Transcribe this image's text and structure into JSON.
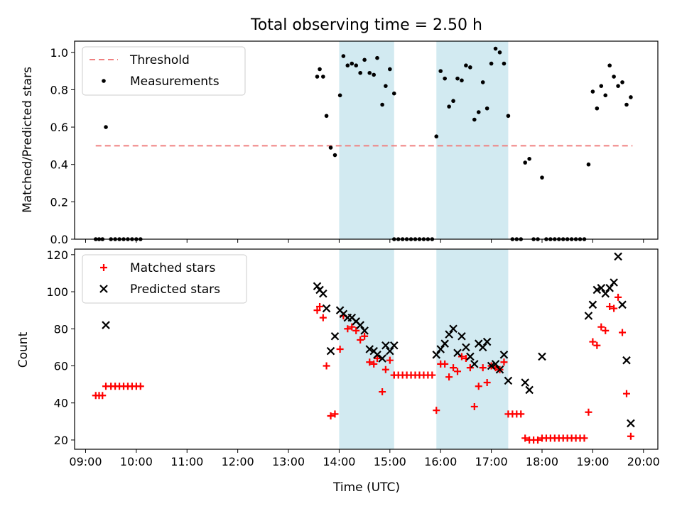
{
  "title": "Total observing time = 2.50 h",
  "x_ticks": [
    {
      "t": 9,
      "label": "09:00"
    },
    {
      "t": 10,
      "label": "10:00"
    },
    {
      "t": 11,
      "label": "11:00"
    },
    {
      "t": 12,
      "label": "12:00"
    },
    {
      "t": 13,
      "label": "13:00"
    },
    {
      "t": 14,
      "label": "14:00"
    },
    {
      "t": 15,
      "label": "15:00"
    },
    {
      "t": 16,
      "label": "16:00"
    },
    {
      "t": 17,
      "label": "17:00"
    },
    {
      "t": 18,
      "label": "18:00"
    },
    {
      "t": 19,
      "label": "19:00"
    },
    {
      "t": 20,
      "label": "20:00"
    }
  ],
  "chart_data": [
    {
      "type": "scatter",
      "ylabel": "Matched/Predicted stars",
      "xlabel": "",
      "xlim": [
        "08:47",
        "20:17"
      ],
      "ylim": [
        0,
        1.06
      ],
      "y_ticks": [
        "0.0",
        "0.2",
        "0.4",
        "0.6",
        "0.8",
        "1.0"
      ],
      "legend": {
        "position": "top-left",
        "entries": [
          "Threshold",
          "Measurements"
        ]
      },
      "colors": {
        "threshold": "#f08080",
        "measurements": "#000000",
        "span": "#add8e6"
      },
      "shaded_spans": [
        [
          "14:00",
          "15:05"
        ],
        [
          "15:55",
          "17:20"
        ]
      ],
      "threshold": {
        "name": "Threshold",
        "y": 0.5,
        "x_range": [
          "09:12",
          "19:47"
        ]
      },
      "measurements": {
        "name": "Measurements",
        "x": [
          "09:12",
          "09:16",
          "09:20",
          "09:24",
          "09:30",
          "09:35",
          "09:40",
          "09:45",
          "09:50",
          "09:55",
          "10:00",
          "10:05",
          "13:34",
          "13:37",
          "13:41",
          "13:45",
          "13:50",
          "13:55",
          "14:01",
          "14:05",
          "14:10",
          "14:15",
          "14:20",
          "14:25",
          "14:30",
          "14:36",
          "14:41",
          "14:45",
          "14:51",
          "14:55",
          "15:00",
          "15:05",
          "15:05",
          "15:10",
          "15:15",
          "15:20",
          "15:25",
          "15:30",
          "15:35",
          "15:40",
          "15:45",
          "15:50",
          "15:55",
          "16:00",
          "16:05",
          "16:10",
          "16:15",
          "16:20",
          "16:25",
          "16:30",
          "16:35",
          "16:40",
          "16:45",
          "16:50",
          "16:55",
          "17:00",
          "17:05",
          "17:10",
          "17:15",
          "17:20",
          "17:25",
          "17:30",
          "17:35",
          "17:40",
          "17:45",
          "17:50",
          "17:55",
          "18:00",
          "18:05",
          "18:10",
          "18:15",
          "18:20",
          "18:25",
          "18:30",
          "18:35",
          "18:40",
          "18:45",
          "18:50",
          "18:55",
          "19:00",
          "19:05",
          "19:10",
          "19:15",
          "19:20",
          "19:25",
          "19:30",
          "19:35",
          "19:40",
          "19:45"
        ],
        "y": [
          0,
          0,
          0,
          0.6,
          0,
          0,
          0,
          0,
          0,
          0,
          0,
          0,
          0.87,
          0.91,
          0.87,
          0.66,
          0.49,
          0.45,
          0.77,
          0.98,
          0.93,
          0.94,
          0.93,
          0.89,
          0.96,
          0.89,
          0.88,
          0.97,
          0.72,
          0.82,
          0.91,
          0.78,
          0,
          0,
          0,
          0,
          0,
          0,
          0,
          0,
          0,
          0,
          0.55,
          0.9,
          0.86,
          0.71,
          0.74,
          0.86,
          0.85,
          0.93,
          0.92,
          0.64,
          0.68,
          0.84,
          0.7,
          0.94,
          1.02,
          1.0,
          0.94,
          0.66,
          0,
          0,
          0,
          0.41,
          0.43,
          0,
          0,
          0.33,
          0,
          0,
          0,
          0,
          0,
          0,
          0,
          0,
          0,
          0,
          0.4,
          0.79,
          0.7,
          0.82,
          0.77,
          0.93,
          0.87,
          0.82,
          0.84,
          0.72,
          0.76
        ]
      }
    },
    {
      "type": "scatter",
      "ylabel": "Count",
      "xlabel": "Time (UTC)",
      "xlim": [
        "08:47",
        "20:17"
      ],
      "ylim": [
        15,
        123
      ],
      "y_ticks": [
        "20",
        "40",
        "60",
        "80",
        "100",
        "120"
      ],
      "legend": {
        "position": "top-left",
        "entries": [
          "Matched stars",
          "Predicted stars"
        ]
      },
      "colors": {
        "matched": "#ff0000",
        "predicted": "#000000",
        "span": "#add8e6"
      },
      "shaded_spans": [
        [
          "14:00",
          "15:05"
        ],
        [
          "15:55",
          "17:20"
        ]
      ],
      "series": [
        {
          "name": "Matched stars",
          "marker": "plus",
          "x": [
            "09:12",
            "09:16",
            "09:20",
            "09:24",
            "09:30",
            "09:35",
            "09:40",
            "09:45",
            "09:50",
            "09:55",
            "10:00",
            "10:05",
            "13:34",
            "13:37",
            "13:41",
            "13:45",
            "13:50",
            "13:55",
            "14:01",
            "14:05",
            "14:10",
            "14:15",
            "14:20",
            "14:25",
            "14:30",
            "14:36",
            "14:41",
            "14:45",
            "14:51",
            "14:55",
            "15:00",
            "15:05",
            "15:05",
            "15:10",
            "15:15",
            "15:20",
            "15:25",
            "15:30",
            "15:35",
            "15:40",
            "15:45",
            "15:50",
            "15:55",
            "16:00",
            "16:05",
            "16:10",
            "16:15",
            "16:20",
            "16:25",
            "16:30",
            "16:35",
            "16:40",
            "16:45",
            "16:50",
            "16:55",
            "17:00",
            "17:05",
            "17:10",
            "17:15",
            "17:20",
            "17:25",
            "17:30",
            "17:35",
            "17:40",
            "17:45",
            "17:50",
            "17:55",
            "18:00",
            "18:05",
            "18:10",
            "18:15",
            "18:20",
            "18:25",
            "18:30",
            "18:35",
            "18:40",
            "18:45",
            "18:50",
            "18:55",
            "19:00",
            "19:05",
            "19:10",
            "19:15",
            "19:20",
            "19:25",
            "19:30",
            "19:35",
            "19:40",
            "19:45"
          ],
          "y": [
            44,
            44,
            44,
            49,
            49,
            49,
            49,
            49,
            49,
            49,
            49,
            49,
            90,
            92,
            86,
            60,
            33,
            34,
            69,
            87,
            80,
            81,
            79,
            74,
            76,
            62,
            61,
            64,
            46,
            58,
            63,
            55,
            55,
            55,
            55,
            55,
            55,
            55,
            55,
            55,
            55,
            55,
            36,
            61,
            61,
            54,
            59,
            57,
            65,
            64,
            59,
            38,
            49,
            59,
            51,
            60,
            59,
            58,
            62,
            34,
            34,
            34,
            34,
            21,
            20,
            20,
            20,
            21,
            21,
            21,
            21,
            21,
            21,
            21,
            21,
            21,
            21,
            21,
            35,
            73,
            71,
            81,
            79,
            92,
            91,
            97,
            78,
            45,
            22
          ]
        },
        {
          "name": "Predicted stars",
          "marker": "x",
          "x": [
            "09:24",
            "13:34",
            "13:37",
            "13:41",
            "13:45",
            "13:50",
            "13:55",
            "14:01",
            "14:05",
            "14:10",
            "14:15",
            "14:20",
            "14:25",
            "14:30",
            "14:36",
            "14:41",
            "14:45",
            "14:51",
            "14:55",
            "15:00",
            "15:05",
            "15:55",
            "16:00",
            "16:05",
            "16:10",
            "16:15",
            "16:20",
            "16:25",
            "16:30",
            "16:35",
            "16:40",
            "16:45",
            "16:50",
            "16:55",
            "17:00",
            "17:05",
            "17:10",
            "17:15",
            "17:20",
            "17:40",
            "17:45",
            "18:00",
            "18:55",
            "19:00",
            "19:05",
            "19:10",
            "19:15",
            "19:20",
            "19:25",
            "19:30",
            "19:35",
            "19:40",
            "19:45"
          ],
          "y": [
            82,
            103,
            101,
            99,
            91,
            68,
            76,
            90,
            88,
            86,
            86,
            84,
            82,
            79,
            69,
            68,
            66,
            64,
            71,
            68,
            71,
            66,
            69,
            72,
            77,
            80,
            67,
            76,
            70,
            65,
            61,
            72,
            70,
            73,
            60,
            61,
            58,
            66,
            52,
            51,
            47,
            65,
            87,
            93,
            101,
            102,
            99,
            102,
            105,
            119,
            93,
            63,
            29
          ]
        }
      ]
    }
  ]
}
